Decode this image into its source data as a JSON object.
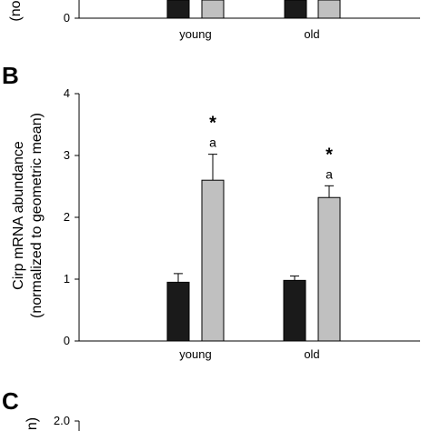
{
  "panel_labels": {
    "b": "B",
    "c": "C"
  },
  "top_partial": {
    "ylabel_fragment": "(no",
    "y_tick_zero": "0",
    "categories": [
      "young",
      "old"
    ]
  },
  "panel_c_partial": {
    "ylabel_fragment": "n)",
    "y_tick_top": "2.0"
  },
  "chart_data": {
    "type": "bar",
    "ylabel_line1": "Cirp mRNA abundance",
    "ylabel_line2": "(normalized to geometric mean)",
    "categories": [
      "young",
      "old"
    ],
    "series": [
      {
        "color": "#1a1a1a",
        "values": [
          0.95,
          0.98
        ],
        "errors": [
          0.14,
          0.07
        ]
      },
      {
        "color": "#c0c0c0",
        "values": [
          2.6,
          2.32
        ],
        "errors": [
          0.42,
          0.19
        ]
      }
    ],
    "annotations": [
      {
        "category": "young",
        "star": "*",
        "letter": "a"
      },
      {
        "category": "old",
        "star": "*",
        "letter": "a"
      }
    ],
    "ylim": [
      0,
      4
    ],
    "yticks": [
      "0",
      "1",
      "2",
      "3",
      "4"
    ]
  }
}
